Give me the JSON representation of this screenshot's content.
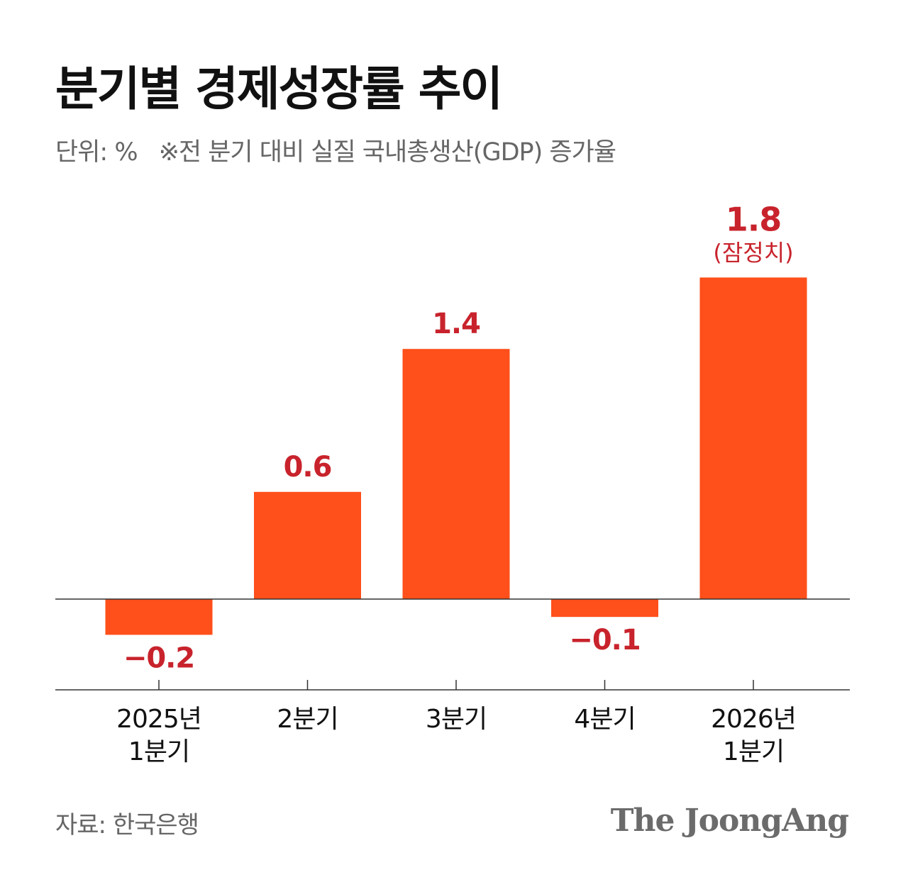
{
  "title": "분기별 경제성장률 추이",
  "subtitle": {
    "unit": "단위: %",
    "note": "※전 분기 대비 실질 국내총생산(GDP) 증가율"
  },
  "source": "자료: 한국은행",
  "logo": "The JoongAng",
  "colors": {
    "bar": "#ff4f1a",
    "value_label": "#c8232c",
    "axis_label": "#111111",
    "axis_line": "#333333"
  },
  "chart_data": {
    "type": "bar",
    "categories": [
      [
        "2025년",
        "1분기"
      ],
      [
        "2분기"
      ],
      [
        "3분기"
      ],
      [
        "4분기"
      ],
      [
        "2026년",
        "1분기"
      ]
    ],
    "values": [
      -0.2,
      0.6,
      1.4,
      -0.1,
      1.8
    ],
    "value_labels": [
      "−0.2",
      "0.6",
      "1.4",
      "−0.1",
      "1.8"
    ],
    "value_notes": [
      "",
      "",
      "",
      "",
      "(잠정치)"
    ],
    "grid": false,
    "zero_line": true
  }
}
